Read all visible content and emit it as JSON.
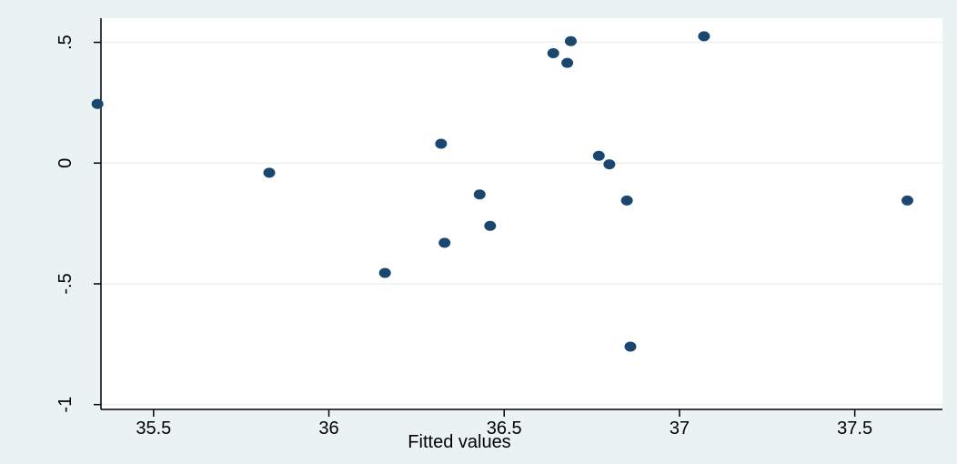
{
  "chart_data": {
    "type": "scatter",
    "title": "",
    "xlabel": "Fitted values",
    "ylabel": "",
    "xlim": [
      35.35,
      37.75
    ],
    "ylim": [
      -1.02,
      0.6
    ],
    "x_ticks": [
      {
        "value": 35.5,
        "label": "35.5"
      },
      {
        "value": 36,
        "label": "36"
      },
      {
        "value": 36.5,
        "label": "36.5"
      },
      {
        "value": 37,
        "label": "37"
      },
      {
        "value": 37.5,
        "label": "37.5"
      }
    ],
    "y_ticks": [
      {
        "value": -1,
        "label": "-1"
      },
      {
        "value": -0.5,
        "label": "-.5"
      },
      {
        "value": 0,
        "label": "0"
      },
      {
        "value": 0.5,
        "label": ".5"
      }
    ],
    "grid": true,
    "legend": "none",
    "colors": {
      "outer_background": "#eaf2f3",
      "plot_background": "#ffffff",
      "grid": "#eaf2f3",
      "axis": "#000000",
      "marker": "#1a476f"
    },
    "series": [
      {
        "points": [
          {
            "x": 35.34,
            "y": 0.245
          },
          {
            "x": 35.83,
            "y": -0.04
          },
          {
            "x": 36.16,
            "y": -0.455
          },
          {
            "x": 36.32,
            "y": 0.08
          },
          {
            "x": 36.33,
            "y": -0.33
          },
          {
            "x": 36.43,
            "y": -0.13
          },
          {
            "x": 36.46,
            "y": -0.26
          },
          {
            "x": 36.64,
            "y": 0.455
          },
          {
            "x": 36.68,
            "y": 0.415
          },
          {
            "x": 36.69,
            "y": 0.505
          },
          {
            "x": 36.77,
            "y": 0.03
          },
          {
            "x": 36.8,
            "y": -0.005
          },
          {
            "x": 36.85,
            "y": -0.155
          },
          {
            "x": 36.86,
            "y": -0.76
          },
          {
            "x": 37.07,
            "y": 0.525
          },
          {
            "x": 37.65,
            "y": -0.155
          }
        ]
      }
    ]
  }
}
